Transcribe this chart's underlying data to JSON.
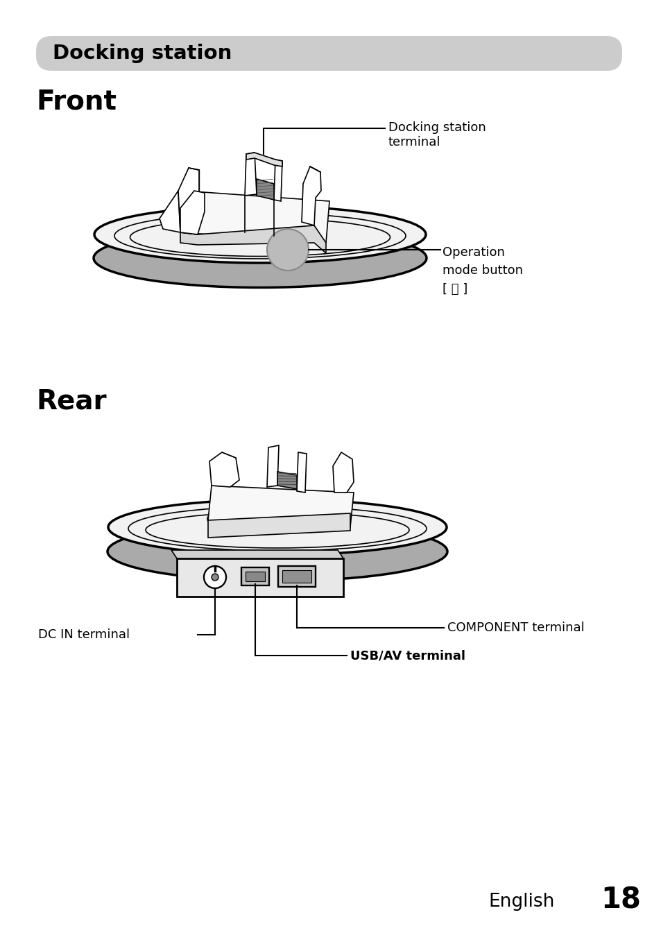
{
  "title_banner": "Docking station",
  "title_banner_color": "#cccccc",
  "title_text_color": "#000000",
  "section_front": "Front",
  "section_rear": "Rear",
  "label_docking_terminal": "Docking station\nterminal",
  "label_operation_mode": "Operation\nmode button\n[ ⓦ ]",
  "label_dc_in": "DC IN terminal",
  "label_usb_av": "USB/AV terminal",
  "label_component": "COMPONENT terminal",
  "footer_text": "English",
  "footer_number": "18",
  "bg_color": "#ffffff",
  "line_color": "#000000",
  "line_width": 2.0,
  "thin_line": 1.2,
  "gray_fill": "#c8c8c8",
  "light_gray": "#e8e8e8",
  "port_gray": "#b0b0b0"
}
